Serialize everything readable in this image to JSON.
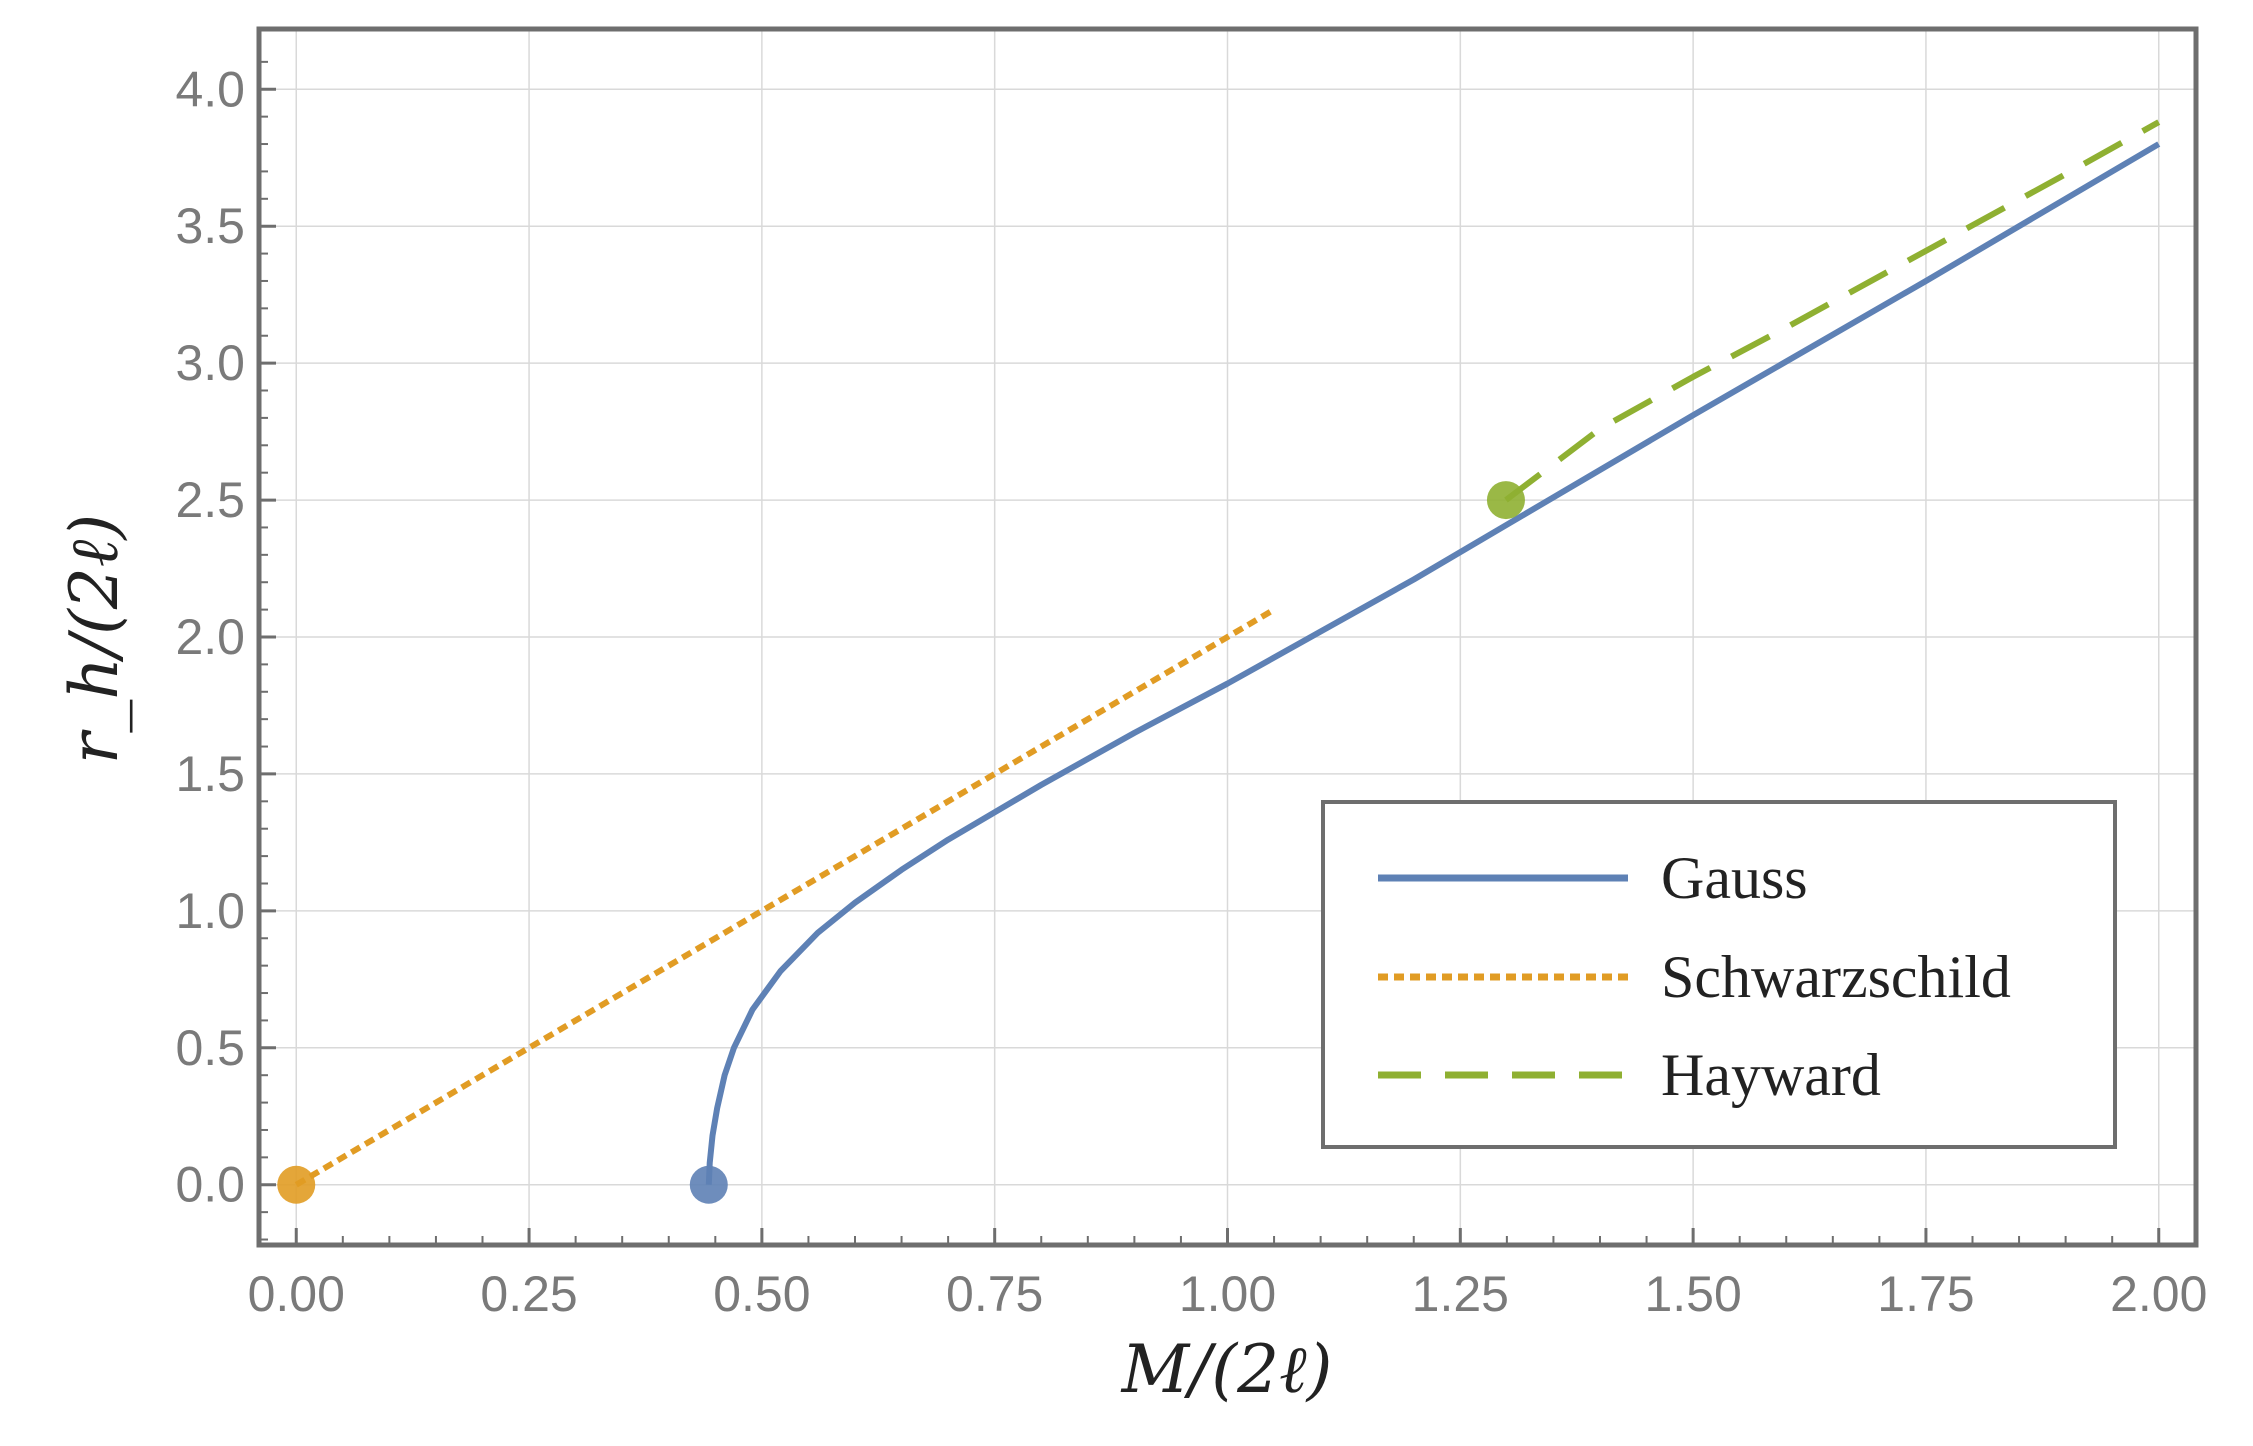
{
  "chart_data": {
    "type": "line",
    "title": "",
    "xlabel": "M/(2ℓ)",
    "ylabel": "r_h/(2ℓ)",
    "xlim": [
      -0.04,
      2.04
    ],
    "ylim": [
      -0.22,
      4.22
    ],
    "grid": true,
    "legend_position": "bottom-right",
    "x_ticks": [
      "0.00",
      "0.25",
      "0.50",
      "0.75",
      "1.00",
      "1.25",
      "1.50",
      "1.75",
      "2.00"
    ],
    "y_ticks": [
      "0.0",
      "0.5",
      "1.0",
      "1.5",
      "2.0",
      "2.5",
      "3.0",
      "3.5",
      "4.0"
    ],
    "series": [
      {
        "name": "Gauss",
        "style": "solid",
        "color": "#5e81b5",
        "start_point": {
          "x": 0.443,
          "y": 0.0
        },
        "x": [
          0.443,
          0.444,
          0.447,
          0.452,
          0.46,
          0.47,
          0.49,
          0.52,
          0.56,
          0.6,
          0.65,
          0.7,
          0.8,
          0.9,
          1.0,
          1.1,
          1.2,
          1.3,
          1.5,
          1.75,
          2.0
        ],
        "y": [
          0.0,
          0.08,
          0.18,
          0.28,
          0.4,
          0.5,
          0.64,
          0.78,
          0.92,
          1.03,
          1.15,
          1.26,
          1.46,
          1.65,
          1.83,
          2.02,
          2.21,
          2.41,
          2.81,
          3.3,
          3.8
        ]
      },
      {
        "name": "Schwarzschild",
        "style": "dotted",
        "color": "#e19c24",
        "start_point": {
          "x": 0.0,
          "y": 0.0
        },
        "x": [
          0.0,
          0.5,
          1.0,
          1.05
        ],
        "y": [
          0.0,
          1.0,
          2.0,
          2.1
        ]
      },
      {
        "name": "Hayward",
        "style": "dashed",
        "color": "#8fb032",
        "start_point": {
          "x": 1.299,
          "y": 2.5
        },
        "x": [
          1.299,
          1.4,
          1.5,
          1.6,
          1.75,
          1.9,
          2.0
        ],
        "y": [
          2.5,
          2.76,
          2.95,
          3.13,
          3.41,
          3.69,
          3.88
        ]
      }
    ]
  }
}
